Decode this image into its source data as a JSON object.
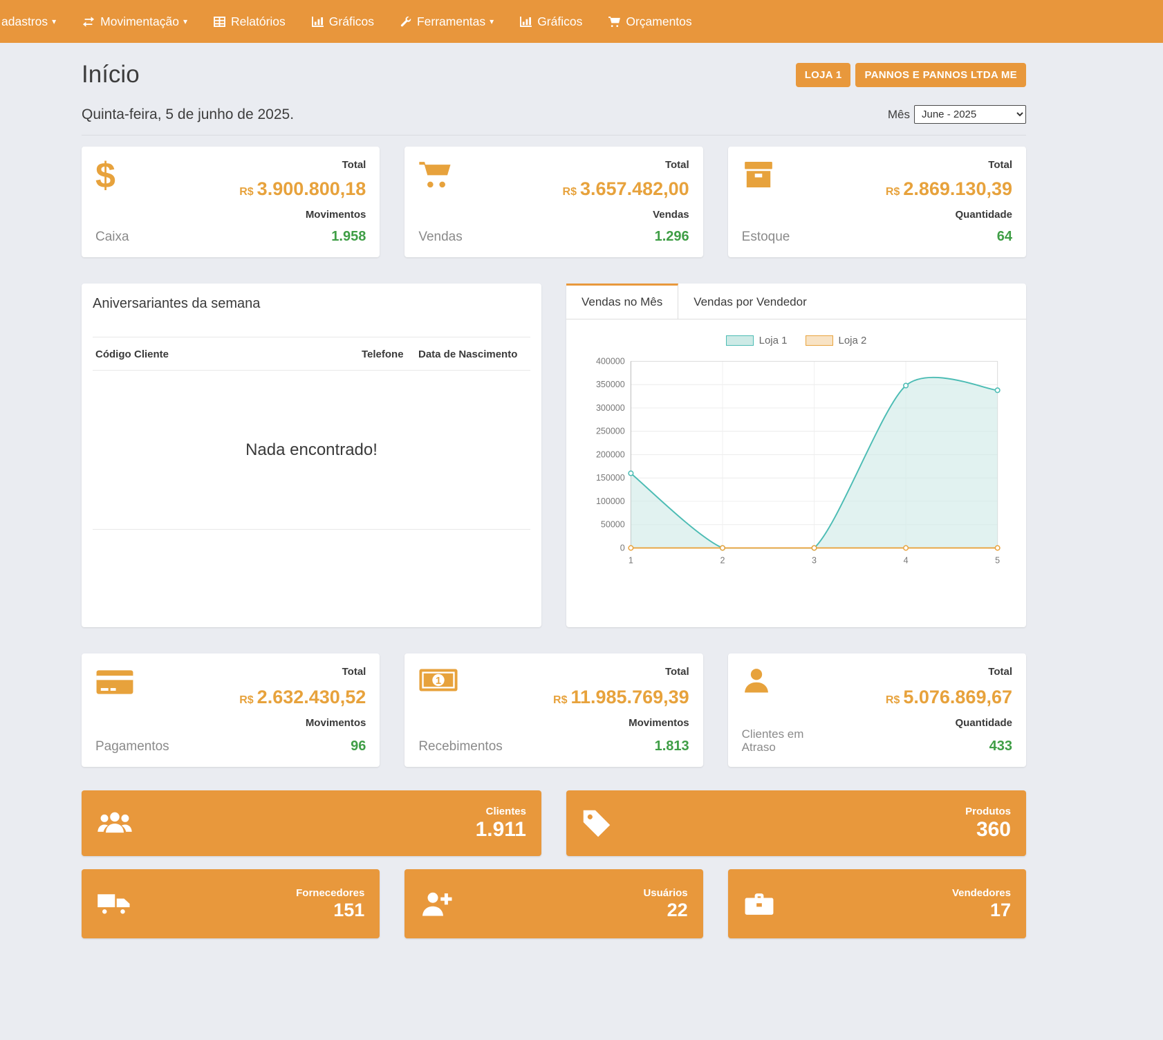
{
  "colors": {
    "navbar_orange": "#e8963c",
    "accent_orange": "#e8983c",
    "value_orange": "#e7a23c",
    "count_green": "#3f9e46",
    "loja1_teal": "#4cbcb4",
    "loja2_orange": "#e8a33d"
  },
  "navbar": {
    "items": [
      {
        "label": "adastros",
        "icon": "",
        "caret": "▾"
      },
      {
        "label": "Movimentação",
        "icon": "exchange-icon",
        "caret": "▾"
      },
      {
        "label": "Relatórios",
        "icon": "table-icon",
        "caret": ""
      },
      {
        "label": "Gráficos",
        "icon": "bar-chart-icon",
        "caret": ""
      },
      {
        "label": "Ferramentas",
        "icon": "wrench-icon",
        "caret": "▾"
      },
      {
        "label": "Gráficos",
        "icon": "bar-chart-icon",
        "caret": ""
      },
      {
        "label": "Orçamentos",
        "icon": "cart-icon",
        "caret": ""
      }
    ]
  },
  "header": {
    "title": "Início",
    "store_button": "LOJA 1",
    "company_button": "PANNOS E PANNOS LTDA ME",
    "date": "Quinta-feira, 5 de junho de 2025.",
    "month_label": "Mês",
    "month_value": "June - 2025"
  },
  "cards_top": [
    {
      "icon": "dollar-icon",
      "label": "Caixa",
      "total_label": "Total",
      "currency": "R$",
      "amount": "3.900.800,18",
      "count_label": "Movimentos",
      "count": "1.958"
    },
    {
      "icon": "cart-icon",
      "label": "Vendas",
      "total_label": "Total",
      "currency": "R$",
      "amount": "3.657.482,00",
      "count_label": "Vendas",
      "count": "1.296"
    },
    {
      "icon": "box-icon",
      "label": "Estoque",
      "total_label": "Total",
      "currency": "R$",
      "amount": "2.869.130,39",
      "count_label": "Quantidade",
      "count": "64"
    }
  ],
  "birthdays": {
    "title": "Aniversariantes da semana",
    "columns": [
      "Código",
      "Cliente",
      "Telefone",
      "Data de Nascimento"
    ],
    "empty_message": "Nada encontrado!"
  },
  "sales_panel": {
    "tabs": [
      {
        "label": "Vendas no Mês"
      },
      {
        "label": "Vendas por Vendedor"
      }
    ]
  },
  "chart_data": {
    "type": "area",
    "x": [
      1,
      2,
      3,
      4,
      5
    ],
    "series": [
      {
        "name": "Loja 1",
        "color": "#4cbcb4",
        "fill": "#cdeae6",
        "values": [
          160000,
          0,
          0,
          348000,
          338000
        ]
      },
      {
        "name": "Loja 2",
        "color": "#e8a33d",
        "fill": "#f8e3c5",
        "values": [
          0,
          0,
          0,
          0,
          0
        ]
      }
    ],
    "ylim": [
      0,
      400000
    ],
    "yticks": [
      0,
      50000,
      100000,
      150000,
      200000,
      250000,
      300000,
      350000,
      400000
    ],
    "xticks": [
      1,
      2,
      3,
      4,
      5
    ],
    "legend_position": "top",
    "grid": true
  },
  "cards_bottom": [
    {
      "icon": "credit-card-icon",
      "label": "Pagamentos",
      "total_label": "Total",
      "currency": "R$",
      "amount": "2.632.430,52",
      "count_label": "Movimentos",
      "count": "96"
    },
    {
      "icon": "money-bill-icon",
      "label": "Recebimentos",
      "total_label": "Total",
      "currency": "R$",
      "amount": "11.985.769,39",
      "count_label": "Movimentos",
      "count": "1.813"
    },
    {
      "icon": "user-icon",
      "label": "Clientes em Atraso",
      "total_label": "Total",
      "currency": "R$",
      "amount": "5.076.869,67",
      "count_label": "Quantidade",
      "count": "433"
    }
  ],
  "tiles_large": [
    {
      "icon": "users-icon",
      "label": "Clientes",
      "value": "1.911"
    },
    {
      "icon": "tag-icon",
      "label": "Produtos",
      "value": "360"
    }
  ],
  "tiles_small": [
    {
      "icon": "truck-icon",
      "label": "Fornecedores",
      "value": "151"
    },
    {
      "icon": "user-plus-icon",
      "label": "Usuários",
      "value": "22"
    },
    {
      "icon": "briefcase-icon",
      "label": "Vendedores",
      "value": "17"
    }
  ]
}
